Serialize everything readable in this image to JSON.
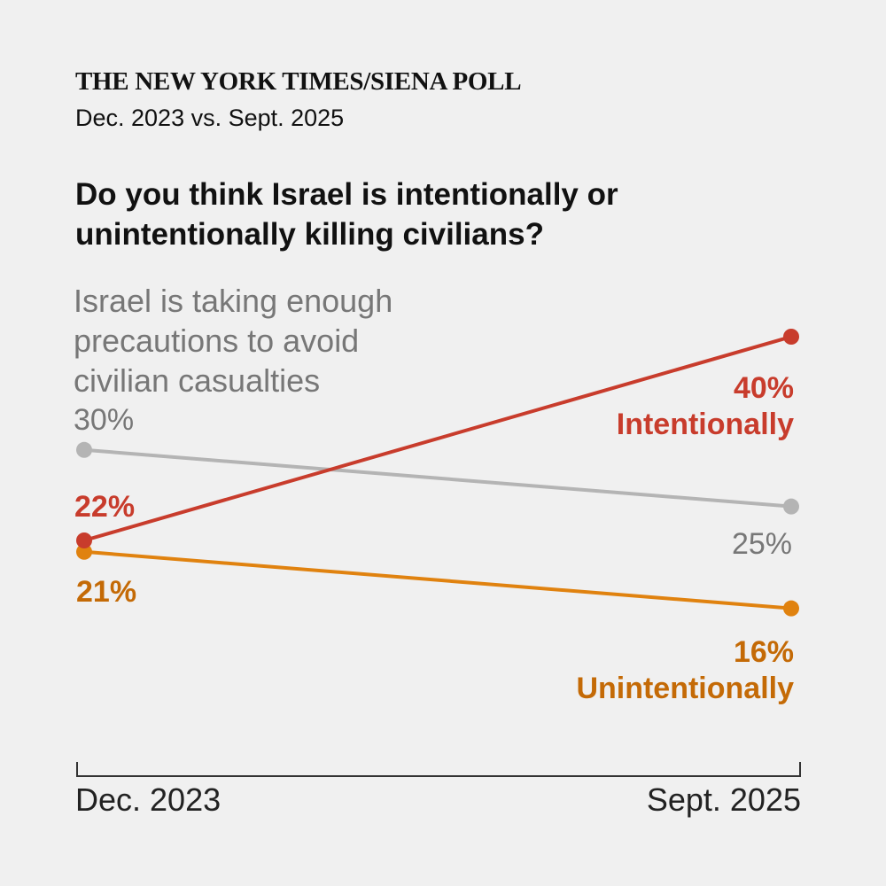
{
  "header": {
    "kicker": "THE NEW YORK TIMES/SIENA POLL",
    "subtitle": "Dec. 2023 vs. Sept. 2025",
    "question": "Do you think Israel is intentionally or unintentionally killing civilians?"
  },
  "chart_data": {
    "type": "line",
    "title": "Do you think Israel is intentionally or unintentionally killing civilians?",
    "x": [
      "Dec. 2023",
      "Sept. 2025"
    ],
    "ylim": [
      10,
      45
    ],
    "grid": false,
    "legend": "direct labels",
    "series": [
      {
        "name": "Intentionally",
        "values": [
          22,
          40
        ],
        "value_labels": [
          "22%",
          "40%"
        ],
        "color": "#c83c2c"
      },
      {
        "name": "Israel is taking enough precautions to avoid civilian casualties",
        "name_lines": [
          "Israel is taking enough",
          "precautions to avoid",
          "civilian casualties"
        ],
        "values": [
          30,
          25
        ],
        "value_labels": [
          "30%",
          "25%"
        ],
        "color": "#b4b4b4"
      },
      {
        "name": "Unintentionally",
        "values": [
          21,
          16
        ],
        "value_labels": [
          "21%",
          "16%"
        ],
        "color": "#e0820f"
      }
    ],
    "label_colors": {
      "Intentionally": "#c83c2c",
      "Israel is taking enough precautions to avoid civilian casualties": "#777777",
      "Unintentionally": "#c46a06"
    }
  }
}
